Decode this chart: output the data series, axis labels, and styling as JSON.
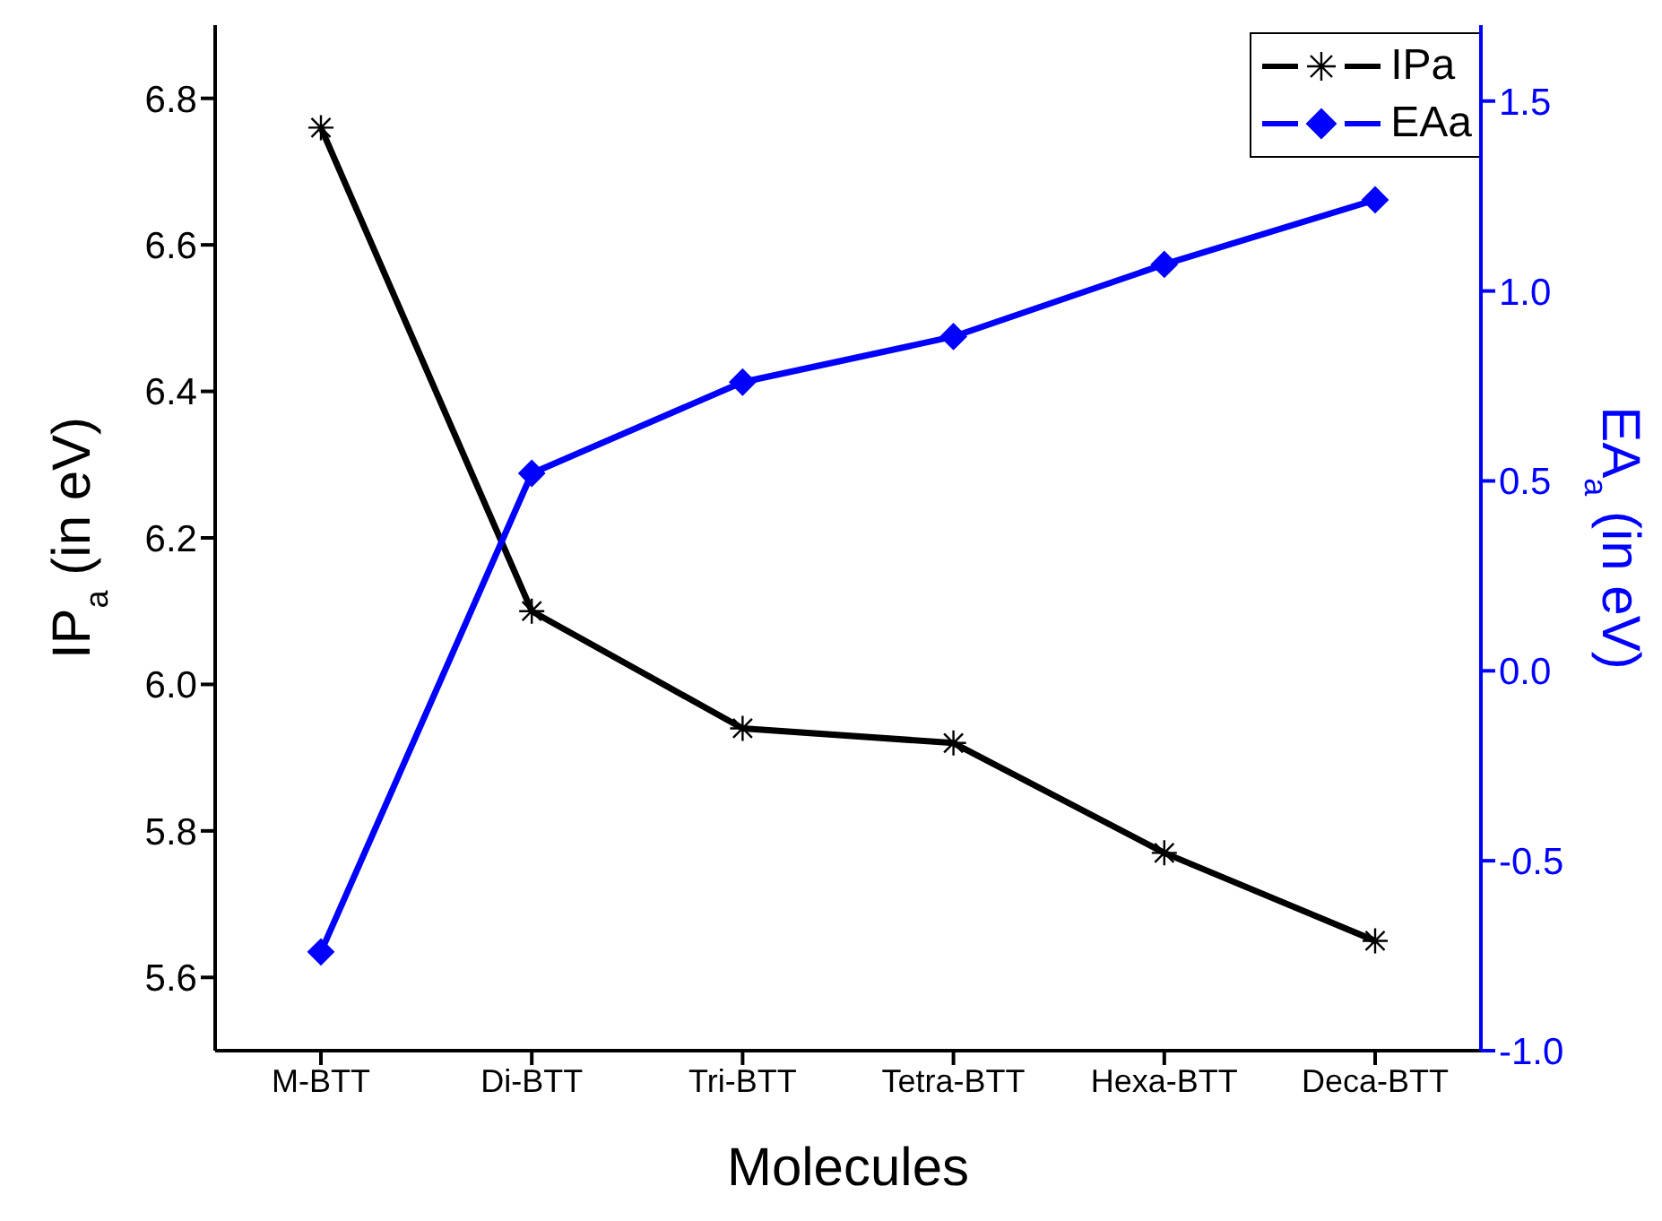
{
  "chart_data": {
    "type": "line",
    "xlabel": "Molecules",
    "ylabel": "IP$_{a}$ (in eV)",
    "y2label": "EA$_{a}$ (in eV)",
    "categories": [
      "M-BTT",
      "Di-BTT",
      "Tri-BTT",
      "Tetra-BTT",
      "Hexa-BTT",
      "Deca-BTT"
    ],
    "series": [
      {
        "name": "IPa",
        "color": "#000000",
        "marker": "cross",
        "values": [
          6.76,
          6.1,
          5.94,
          5.92,
          5.77,
          5.65
        ]
      },
      {
        "name": "EAa",
        "color": "#0000ff",
        "marker": "diamond",
        "axis": "y2",
        "values": [
          -0.74,
          0.52,
          0.76,
          0.88,
          1.07,
          1.24
        ]
      }
    ],
    "ylim": [
      5.5,
      6.9
    ],
    "yticks": [
      5.6,
      5.8,
      {
        "value": 6,
        "label": "6.0"
      },
      6.2,
      6.4,
      6.6,
      6.8
    ],
    "y2lim": [
      -1.0,
      1.7
    ],
    "y2ticks": [
      {
        "value": -1,
        "label": "-1.0"
      },
      -0.5,
      {
        "value": 0,
        "label": "0.0"
      },
      0.5,
      {
        "value": 1,
        "label": "1.0"
      },
      1.5
    ],
    "legend": "top right",
    "grid": false
  }
}
